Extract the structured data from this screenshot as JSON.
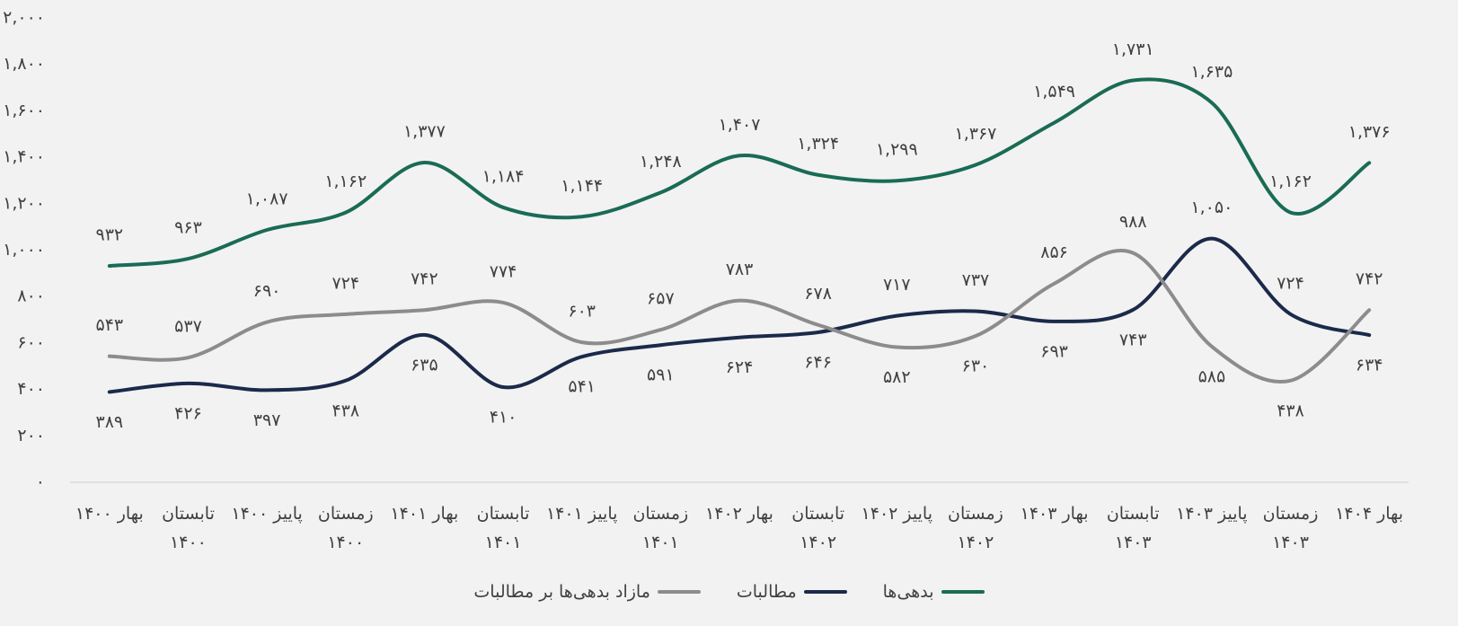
{
  "chart_data": {
    "type": "line",
    "categories": [
      "بهار ۱۴۰۰",
      "تابستان ۱۴۰۰",
      "پاییز ۱۴۰۰",
      "زمستان ۱۴۰۰",
      "بهار ۱۴۰۱",
      "تابستان ۱۴۰۱",
      "پاییز ۱۴۰۱",
      "زمستان ۱۴۰۱",
      "بهار ۱۴۰۲",
      "تابستان ۱۴۰۲",
      "پاییز ۱۴۰۲",
      "زمستان ۱۴۰۲",
      "بهار ۱۴۰۳",
      "تابستان ۱۴۰۳",
      "پاییز ۱۴۰۳",
      "زمستان ۱۴۰۳",
      "بهار ۱۴۰۴"
    ],
    "series": [
      {
        "name": "بدهی‌ها",
        "color": "#1a6b55",
        "values": [
          932,
          963,
          1087,
          1162,
          1377,
          1184,
          1144,
          1248,
          1407,
          1324,
          1299,
          1367,
          1549,
          1731,
          1635,
          1162,
          1376
        ],
        "value_labels": [
          "۹۳۲",
          "۹۶۳",
          "۱,۰۸۷",
          "۱,۱۶۲",
          "۱,۳۷۷",
          "۱,۱۸۴",
          "۱,۱۴۴",
          "۱,۲۴۸",
          "۱,۴۰۷",
          "۱,۳۲۴",
          "۱,۲۹۹",
          "۱,۳۶۷",
          "۱,۵۴۹",
          "۱,۷۳۱",
          "۱,۶۳۵",
          "۱,۱۶۲",
          "۱,۳۷۶"
        ]
      },
      {
        "name": "مطالبات",
        "color": "#1b2a4a",
        "values": [
          389,
          426,
          397,
          438,
          635,
          410,
          541,
          591,
          624,
          646,
          717,
          737,
          693,
          743,
          1050,
          724,
          634
        ],
        "value_labels": [
          "۳۸۹",
          "۴۲۶",
          "۳۹۷",
          "۴۳۸",
          "۶۳۵",
          "۴۱۰",
          "۵۴۱",
          "۵۹۱",
          "۶۲۴",
          "۶۴۶",
          "۷۱۷",
          "۷۳۷",
          "۶۹۳",
          "۷۴۳",
          "۱,۰۵۰",
          "۷۲۴",
          "۶۳۴"
        ]
      },
      {
        "name": "مازاد بدهی‌ها بر مطالبات",
        "color": "#8c8c8c",
        "values": [
          543,
          537,
          690,
          724,
          742,
          774,
          603,
          657,
          783,
          678,
          582,
          630,
          856,
          988,
          585,
          438,
          742
        ],
        "value_labels": [
          "۵۴۳",
          "۵۳۷",
          "۶۹۰",
          "۷۲۴",
          "۷۴۲",
          "۷۷۴",
          "۶۰۳",
          "۶۵۷",
          "۷۸۳",
          "۶۷۸",
          "۵۸۲",
          "۶۳۰",
          "۸۵۶",
          "۹۸۸",
          "۵۸۵",
          "۴۳۸",
          "۷۴۲"
        ]
      }
    ],
    "ylim": [
      0,
      2000
    ],
    "yticks": [
      {
        "value": 0,
        "label": "۰"
      },
      {
        "value": 200,
        "label": "۲۰۰"
      },
      {
        "value": 400,
        "label": "۴۰۰"
      },
      {
        "value": 600,
        "label": "۶۰۰"
      },
      {
        "value": 800,
        "label": "۸۰۰"
      },
      {
        "value": 1000,
        "label": "۱,۰۰۰"
      },
      {
        "value": 1200,
        "label": "۱,۲۰۰"
      },
      {
        "value": 1400,
        "label": "۱,۴۰۰"
      },
      {
        "value": 1600,
        "label": "۱,۶۰۰"
      },
      {
        "value": 1800,
        "label": "۱,۸۰۰"
      },
      {
        "value": 2000,
        "label": "۲,۰۰۰"
      }
    ],
    "grid": false,
    "legend": "bottom"
  }
}
